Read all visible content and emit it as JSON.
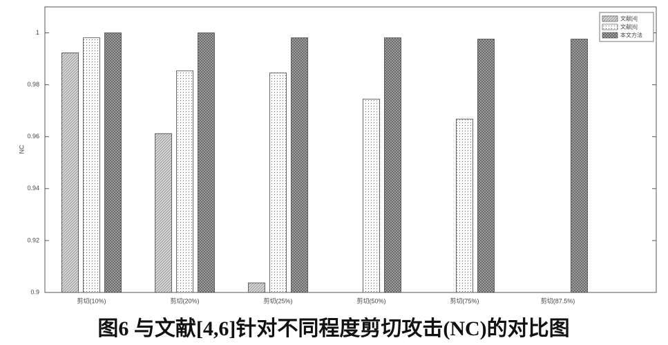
{
  "chart_data": {
    "type": "bar",
    "title": "图6  与文献[4,6]针对不同程度剪切攻击(NC)的对比图",
    "y_label": "NC",
    "categories": [
      "剪切(10%)",
      "剪切(20%)",
      "剪切(25%)",
      "剪切(50%)",
      "剪切(75%)",
      "剪切(87.5%)"
    ],
    "series": [
      {
        "name": "文献[4]",
        "color": "#d4d4d4",
        "values": [
          0.9923,
          0.9612,
          0.9037,
          null,
          null,
          null
        ]
      },
      {
        "name": "文献[6]",
        "color": "#ffffff",
        "values": [
          0.9981,
          0.9854,
          0.9846,
          0.9745,
          0.9668,
          null
        ]
      },
      {
        "name": "本文方法",
        "color": "#a8a8a8",
        "values": [
          1.0,
          1.0,
          0.9981,
          0.9981,
          0.9976,
          0.9976
        ]
      }
    ],
    "ylim": [
      0.9,
      1.01
    ],
    "yticks": [
      0.9,
      0.92,
      0.94,
      0.96,
      0.98,
      1
    ],
    "grid": false,
    "legend": "top-right"
  }
}
